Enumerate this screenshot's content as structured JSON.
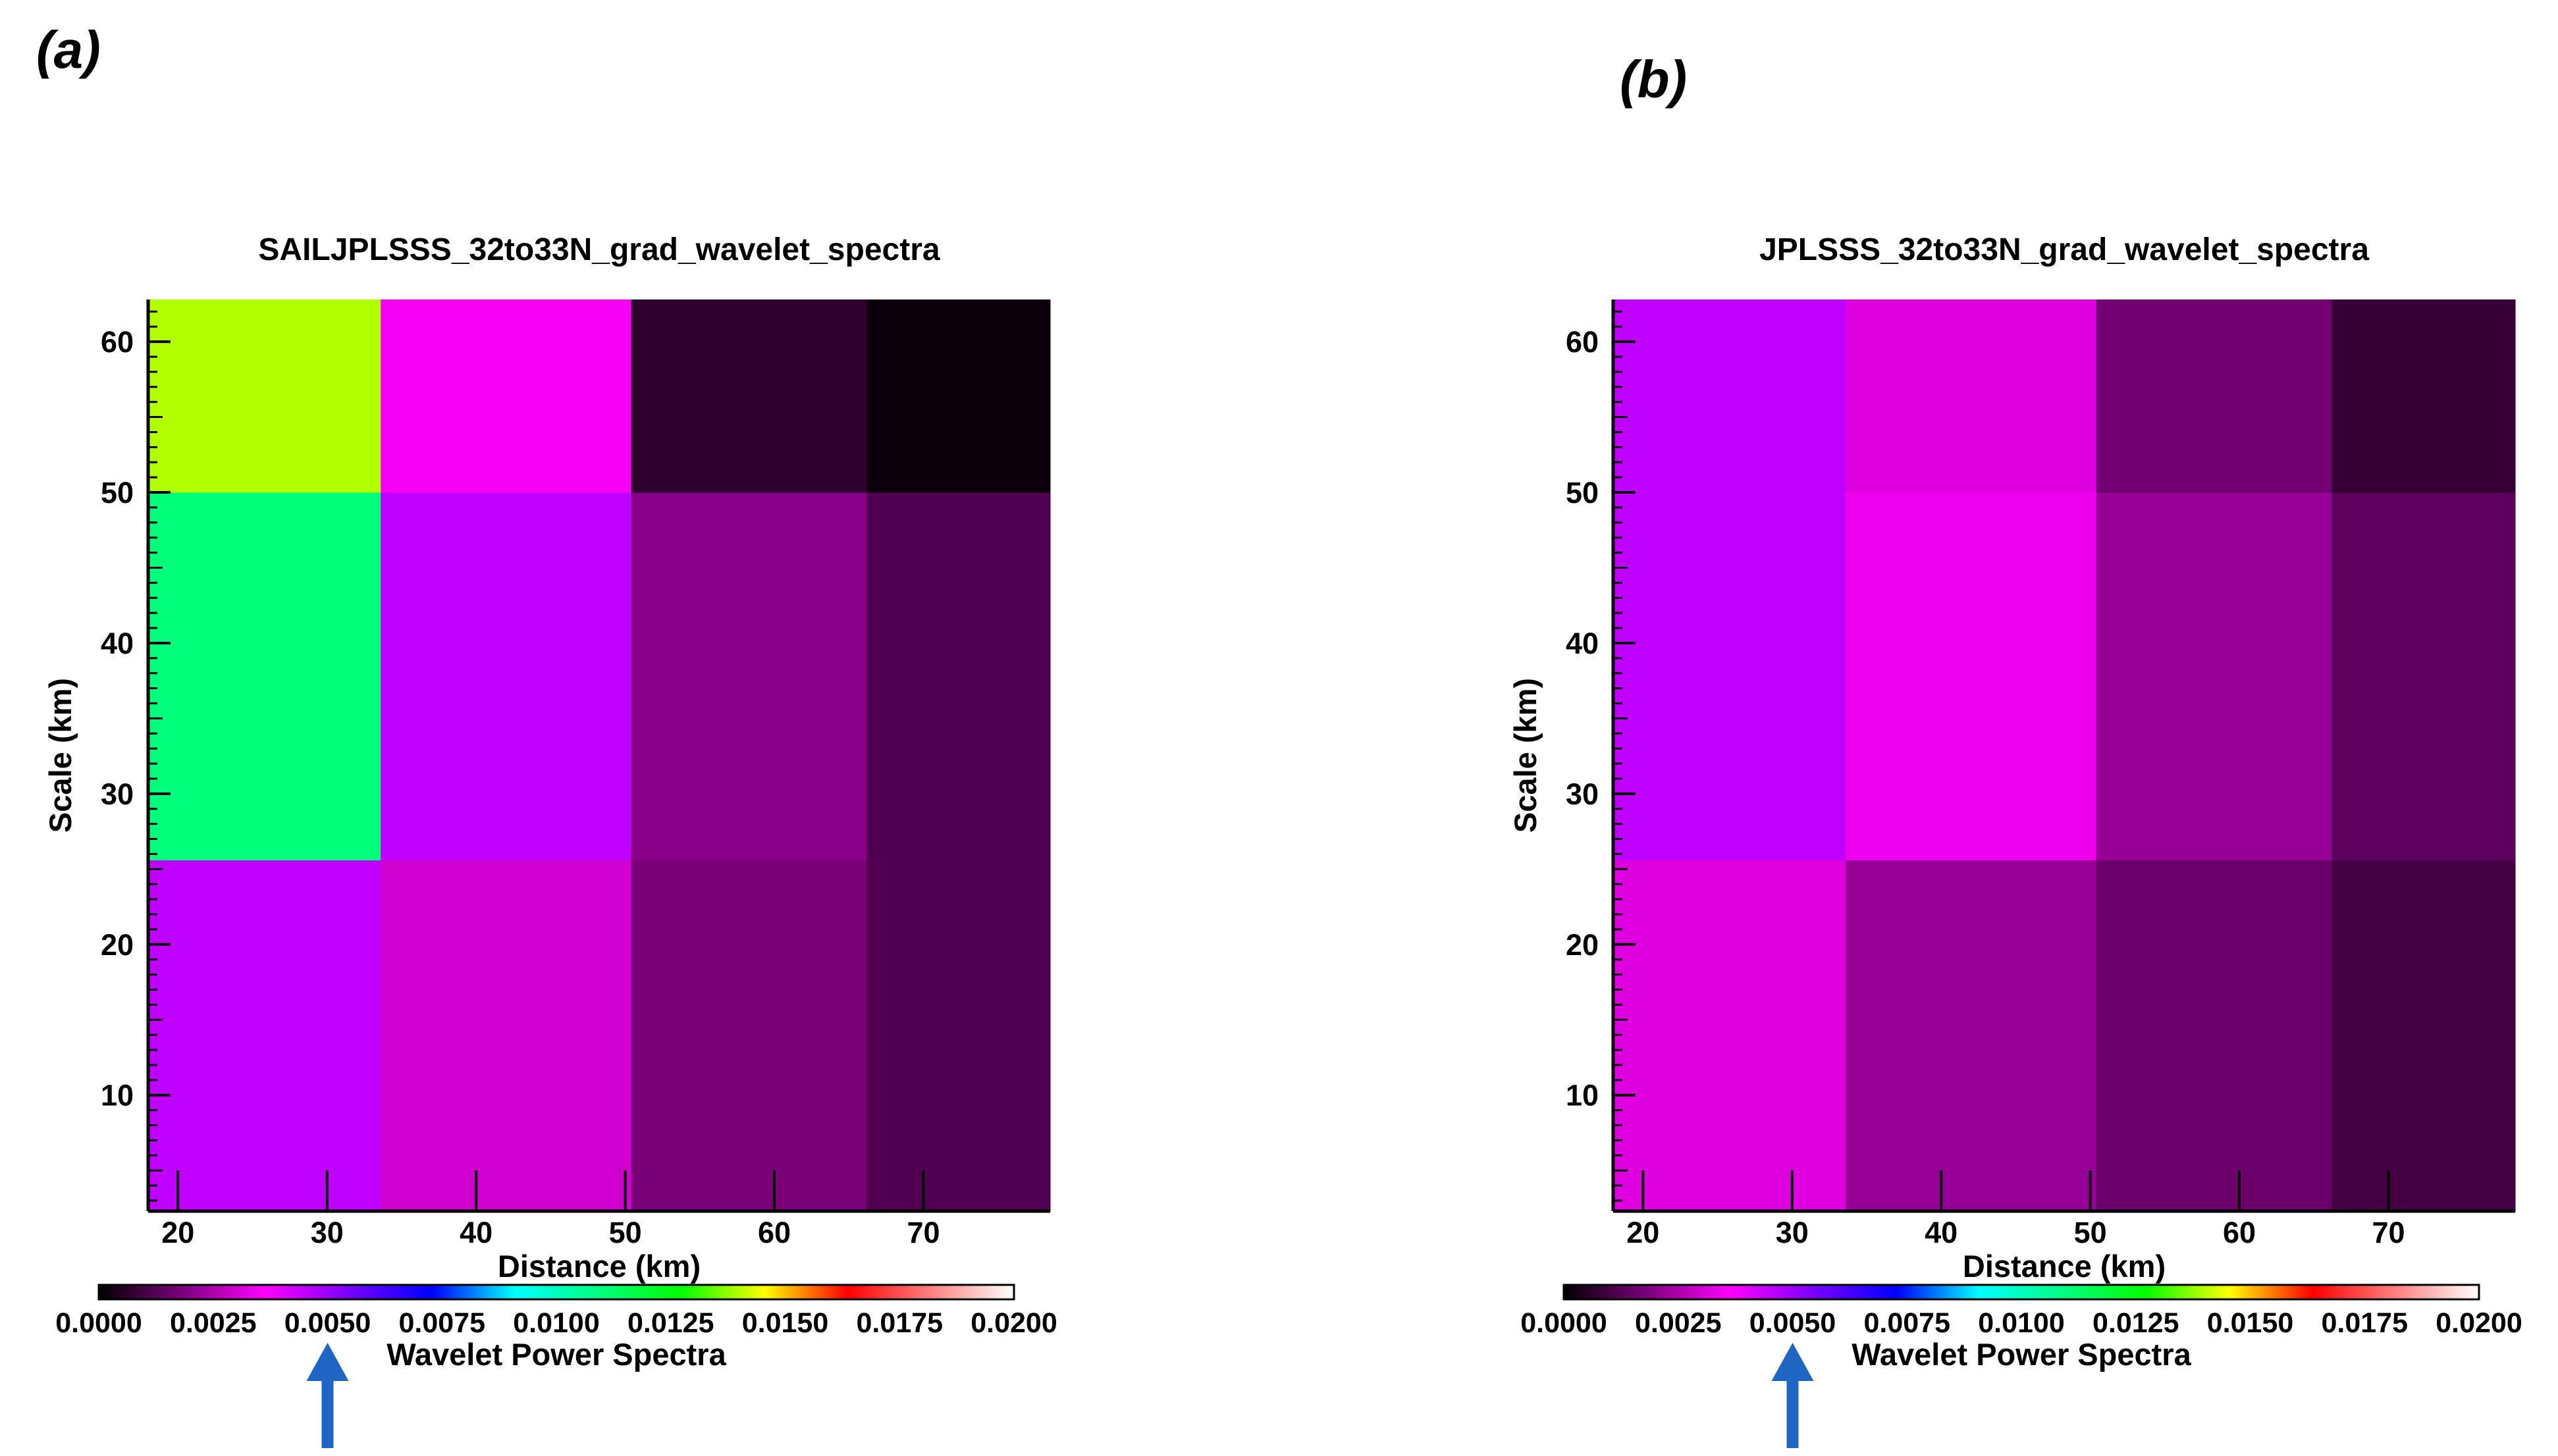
{
  "figure": {
    "panel_labels": [
      "(a)",
      "(b)"
    ]
  },
  "chart_data": [
    {
      "type": "heatmap",
      "title": "SAILJPLSSS_32to33N_grad_wavelet_spectra",
      "xlabel": "Distance (km)",
      "ylabel": "Scale (km)",
      "xlim": [
        18,
        78.5
      ],
      "ylim": [
        2.3,
        62.8
      ],
      "x_ticks": [
        20,
        30,
        40,
        50,
        60,
        70
      ],
      "y_ticks": [
        10,
        20,
        30,
        40,
        50,
        60
      ],
      "x_edges": [
        18,
        33.6,
        50.4,
        66.2,
        78.5
      ],
      "y_edges": [
        2.3,
        25.6,
        50,
        62.8
      ],
      "values": [
        [
          0.0045,
          0.003,
          0.0018,
          0.0012
        ],
        [
          0.011,
          0.0045,
          0.002,
          0.0012
        ],
        [
          0.014,
          0.0035,
          0.0007,
          0.0002
        ]
      ],
      "colorbar": {
        "label": "Wavelet Power Spectra",
        "range": [
          0.0,
          0.02
        ],
        "ticks": [
          "0.0000",
          "0.0025",
          "0.0050",
          "0.0075",
          "0.0100",
          "0.0125",
          "0.0150",
          "0.0175",
          "0.0200"
        ],
        "annotation_value": 0.005,
        "annotation": "arrow"
      }
    },
    {
      "type": "heatmap",
      "title": "JPLSSS_32to33N_grad_wavelet_spectra",
      "xlabel": "Distance (km)",
      "ylabel": "Scale (km)",
      "xlim": [
        18,
        78.5
      ],
      "ylim": [
        2.3,
        62.8
      ],
      "x_ticks": [
        20,
        30,
        40,
        50,
        60,
        70
      ],
      "y_ticks": [
        10,
        20,
        30,
        40,
        50,
        60
      ],
      "x_edges": [
        18,
        33.6,
        50.4,
        66.2,
        78.5
      ],
      "y_edges": [
        2.3,
        25.6,
        50,
        62.8
      ],
      "values": [
        [
          0.0032,
          0.0022,
          0.0016,
          0.001
        ],
        [
          0.0045,
          0.0034,
          0.0022,
          0.0014
        ],
        [
          0.0045,
          0.0032,
          0.0017,
          0.0008
        ]
      ],
      "colorbar": {
        "label": "Wavelet Power Spectra",
        "range": [
          0.0,
          0.02
        ],
        "ticks": [
          "0.0000",
          "0.0025",
          "0.0050",
          "0.0075",
          "0.0100",
          "0.0125",
          "0.0150",
          "0.0175",
          "0.0200"
        ],
        "annotation_value": 0.005,
        "annotation": "arrow"
      }
    }
  ],
  "colors": {
    "colormap": [
      "#000000",
      "#7a007a",
      "#ff00ff",
      "#7a00ff",
      "#0000ff",
      "#00ffff",
      "#00ff80",
      "#00ff00",
      "#ffff00",
      "#ff0000",
      "#ff8080",
      "#ffffff"
    ],
    "arrow": "#1f66c4",
    "axis": "#000000"
  }
}
